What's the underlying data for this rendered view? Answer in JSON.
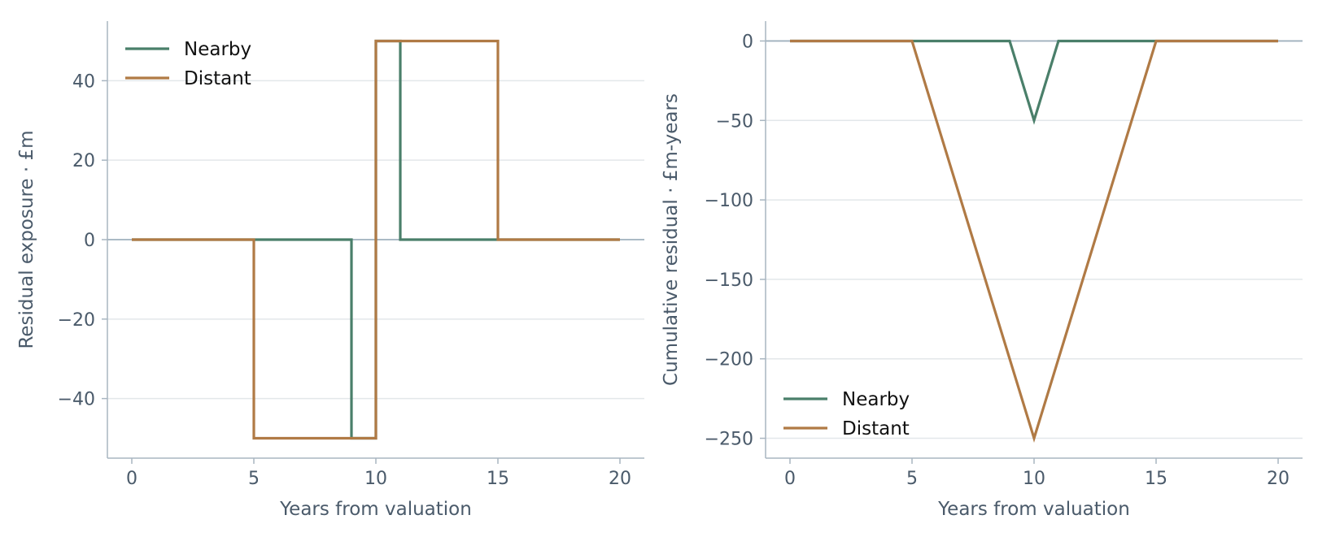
{
  "chart_data": [
    {
      "type": "line",
      "step": true,
      "xlabel": "Years from valuation",
      "ylabel": "Residual exposure · £m",
      "xlim": [
        -1,
        21
      ],
      "ylim": [
        -55,
        55
      ],
      "xticks": [
        0,
        5,
        10,
        15,
        20
      ],
      "yticks": [
        -40,
        -20,
        0,
        20,
        40
      ],
      "ytick_labels": [
        "−40",
        "−20",
        "0",
        "20",
        "40"
      ],
      "grid": "horizontal",
      "zero_line": true,
      "legend_position": "top-left",
      "series": [
        {
          "name": "Nearby",
          "color": "#4a7f6a",
          "x": [
            0,
            9,
            9,
            10,
            10,
            11,
            11,
            20
          ],
          "y": [
            0,
            0,
            -50,
            -50,
            50,
            50,
            0,
            0
          ]
        },
        {
          "name": "Distant",
          "color": "#b07a45",
          "x": [
            0,
            5,
            5,
            10,
            10,
            15,
            15,
            20
          ],
          "y": [
            0,
            0,
            -50,
            -50,
            50,
            50,
            0,
            0
          ]
        }
      ]
    },
    {
      "type": "line",
      "xlabel": "Years from valuation",
      "ylabel": "Cumulative residual · £m-years",
      "xlim": [
        -1,
        21
      ],
      "ylim": [
        -262.5,
        12.5
      ],
      "xticks": [
        0,
        5,
        10,
        15,
        20
      ],
      "yticks": [
        -250,
        -200,
        -150,
        -100,
        -50,
        0
      ],
      "ytick_labels": [
        "−250",
        "−200",
        "−150",
        "−100",
        "−50",
        "0"
      ],
      "grid": "horizontal",
      "zero_line": true,
      "legend_position": "bottom-left",
      "series": [
        {
          "name": "Nearby",
          "color": "#4a7f6a",
          "x": [
            0,
            9,
            10,
            11,
            20
          ],
          "y": [
            0,
            0,
            -50,
            0,
            0
          ]
        },
        {
          "name": "Distant",
          "color": "#b07a45",
          "x": [
            0,
            5,
            10,
            15,
            20
          ],
          "y": [
            0,
            0,
            -250,
            0,
            0
          ]
        }
      ]
    }
  ]
}
